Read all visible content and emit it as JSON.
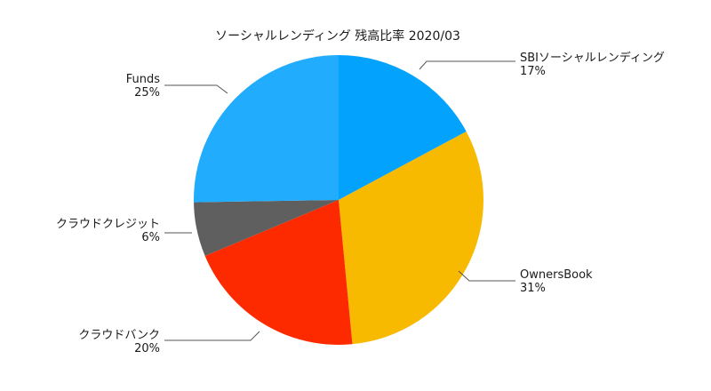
{
  "chart_data": {
    "type": "pie",
    "title": "ソーシャルレンディング 残高比率 2020/03",
    "slices": [
      {
        "name": "SBIソーシャルレンディング",
        "value": 17,
        "pct_label": "17%",
        "color": "#03a2fd"
      },
      {
        "name": "OwnersBook",
        "value": 31,
        "pct_label": "31%",
        "color": "#f8ba00"
      },
      {
        "name": "クラウドバンク",
        "value": 20,
        "pct_label": "20%",
        "color": "#fd2a00"
      },
      {
        "name": "クラウドクレジット",
        "value": 6,
        "pct_label": "6%",
        "color": "#5f5f5f"
      },
      {
        "name": "Funds",
        "value": 25,
        "pct_label": "25%",
        "color": "#22acfd"
      }
    ],
    "start": "12 o'clock",
    "direction": "clockwise",
    "legend": "none",
    "labels": "outside with leader lines"
  }
}
